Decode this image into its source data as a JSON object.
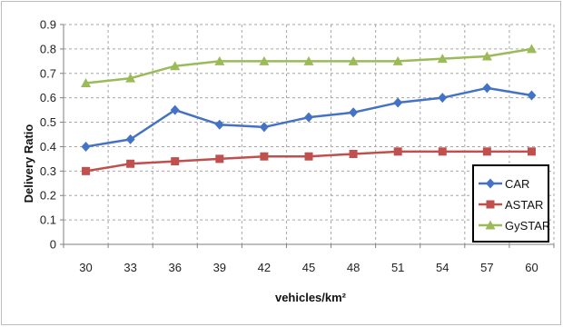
{
  "chart_data": {
    "type": "line",
    "title": "",
    "xlabel": "vehicles/km²",
    "ylabel": "Delivery Ratio",
    "categories": [
      "30",
      "33",
      "36",
      "39",
      "42",
      "45",
      "48",
      "51",
      "54",
      "57",
      "60"
    ],
    "ylim": [
      0,
      0.9
    ],
    "yticks": [
      "0",
      "0.1",
      "0.2",
      "0.3",
      "0.4",
      "0.5",
      "0.6",
      "0.7",
      "0.8",
      "0.9"
    ],
    "grid": "dashed",
    "legend_position": "bottom-right",
    "series": [
      {
        "name": "CAR",
        "color": "#4472C4",
        "marker": "diamond",
        "values": [
          0.4,
          0.43,
          0.55,
          0.49,
          0.48,
          0.52,
          0.54,
          0.58,
          0.6,
          0.64,
          0.61
        ]
      },
      {
        "name": "ASTAR",
        "color": "#C0504D",
        "marker": "square",
        "values": [
          0.3,
          0.33,
          0.34,
          0.35,
          0.36,
          0.36,
          0.37,
          0.38,
          0.38,
          0.38,
          0.38
        ]
      },
      {
        "name": "GySTAR",
        "color": "#9BBB59",
        "marker": "triangle",
        "values": [
          0.66,
          0.68,
          0.73,
          0.75,
          0.75,
          0.75,
          0.75,
          0.75,
          0.76,
          0.77,
          0.8
        ]
      }
    ]
  }
}
